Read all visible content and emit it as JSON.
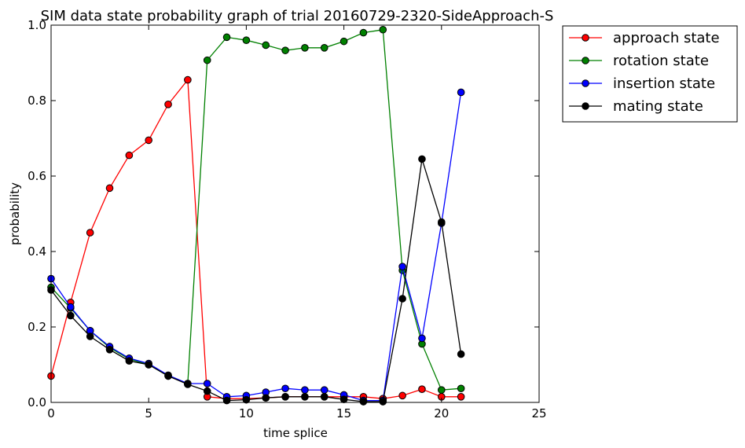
{
  "chart_data": {
    "type": "line",
    "title": "SIM data state probability graph of trial 20160729-2320-SideApproach-S",
    "xlabel": "time splice",
    "ylabel": "probability",
    "xlim": [
      0,
      25
    ],
    "ylim": [
      0.0,
      1.0
    ],
    "xticks": [
      0,
      5,
      10,
      15,
      20,
      25
    ],
    "xtick_labels": [
      "0",
      "5",
      "10",
      "15",
      "20",
      "25"
    ],
    "yticks": [
      0.0,
      0.2,
      0.4,
      0.6,
      0.8,
      1.0
    ],
    "ytick_labels": [
      "0.0",
      "0.2",
      "0.4",
      "0.6",
      "0.8",
      "1.0"
    ],
    "grid": false,
    "legend_position": "outside-top-right",
    "x": [
      0,
      1,
      2,
      3,
      4,
      5,
      6,
      7,
      8,
      9,
      10,
      11,
      12,
      13,
      14,
      15,
      16,
      17,
      18,
      19,
      20,
      21
    ],
    "series": [
      {
        "name": "approach state",
        "color": "#ff0000",
        "values": [
          0.07,
          0.265,
          0.45,
          0.568,
          0.655,
          0.695,
          0.79,
          0.855,
          0.015,
          0.01,
          0.01,
          0.012,
          0.015,
          0.015,
          0.015,
          0.015,
          0.015,
          0.01,
          0.018,
          0.035,
          0.015,
          0.015
        ]
      },
      {
        "name": "rotation state",
        "color": "#008000",
        "values": [
          0.305,
          0.25,
          0.19,
          0.145,
          0.115,
          0.1,
          0.07,
          0.05,
          0.907,
          0.968,
          0.96,
          0.947,
          0.933,
          0.94,
          0.94,
          0.957,
          0.98,
          0.988,
          0.35,
          0.155,
          0.033,
          0.037
        ]
      },
      {
        "name": "insertion state",
        "color": "#0000ff",
        "values": [
          0.328,
          0.253,
          0.19,
          0.148,
          0.117,
          0.103,
          0.072,
          0.05,
          0.05,
          0.015,
          0.018,
          0.027,
          0.037,
          0.033,
          0.033,
          0.02,
          0.005,
          0.005,
          0.36,
          0.17,
          0.475,
          0.822
        ]
      },
      {
        "name": "mating state",
        "color": "#000000",
        "values": [
          0.298,
          0.23,
          0.175,
          0.14,
          0.11,
          0.1,
          0.07,
          0.048,
          0.03,
          0.005,
          0.007,
          0.012,
          0.015,
          0.015,
          0.015,
          0.008,
          0.002,
          0.002,
          0.275,
          0.645,
          0.478,
          0.128
        ]
      }
    ]
  }
}
